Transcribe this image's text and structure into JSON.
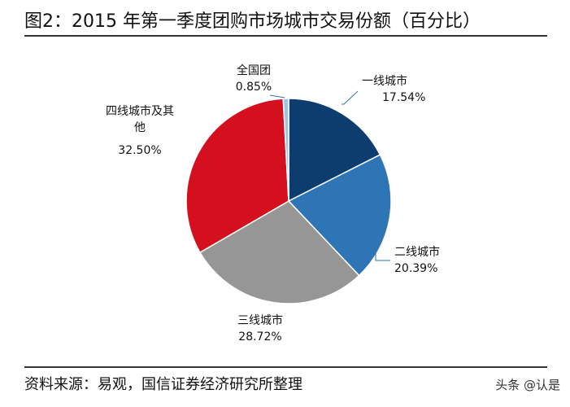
{
  "chart_data": {
    "type": "pie",
    "title": "图2：2015 年第一季度团购市场城市交易份额（百分比）",
    "slices": [
      {
        "label": "一线城市",
        "value": 17.54,
        "display": "17.54%",
        "color": "#0d3c6e"
      },
      {
        "label": "二线城市",
        "value": 20.39,
        "display": "20.39%",
        "color": "#2e75b6"
      },
      {
        "label": "三线城市",
        "value": 28.72,
        "display": "28.72%",
        "color": "#969696"
      },
      {
        "label": "四线城市及其他",
        "value": 32.5,
        "display": "32.50%",
        "color": "#d4101e"
      },
      {
        "label": "全国团",
        "value": 0.85,
        "display": "0.85%",
        "color": "#9dc3e6"
      }
    ],
    "start_angle": "top",
    "direction": "clockwise",
    "legend": "none"
  },
  "source": "资料来源：易观，国信证券经济研究所整理",
  "watermark": "头条 @认是"
}
